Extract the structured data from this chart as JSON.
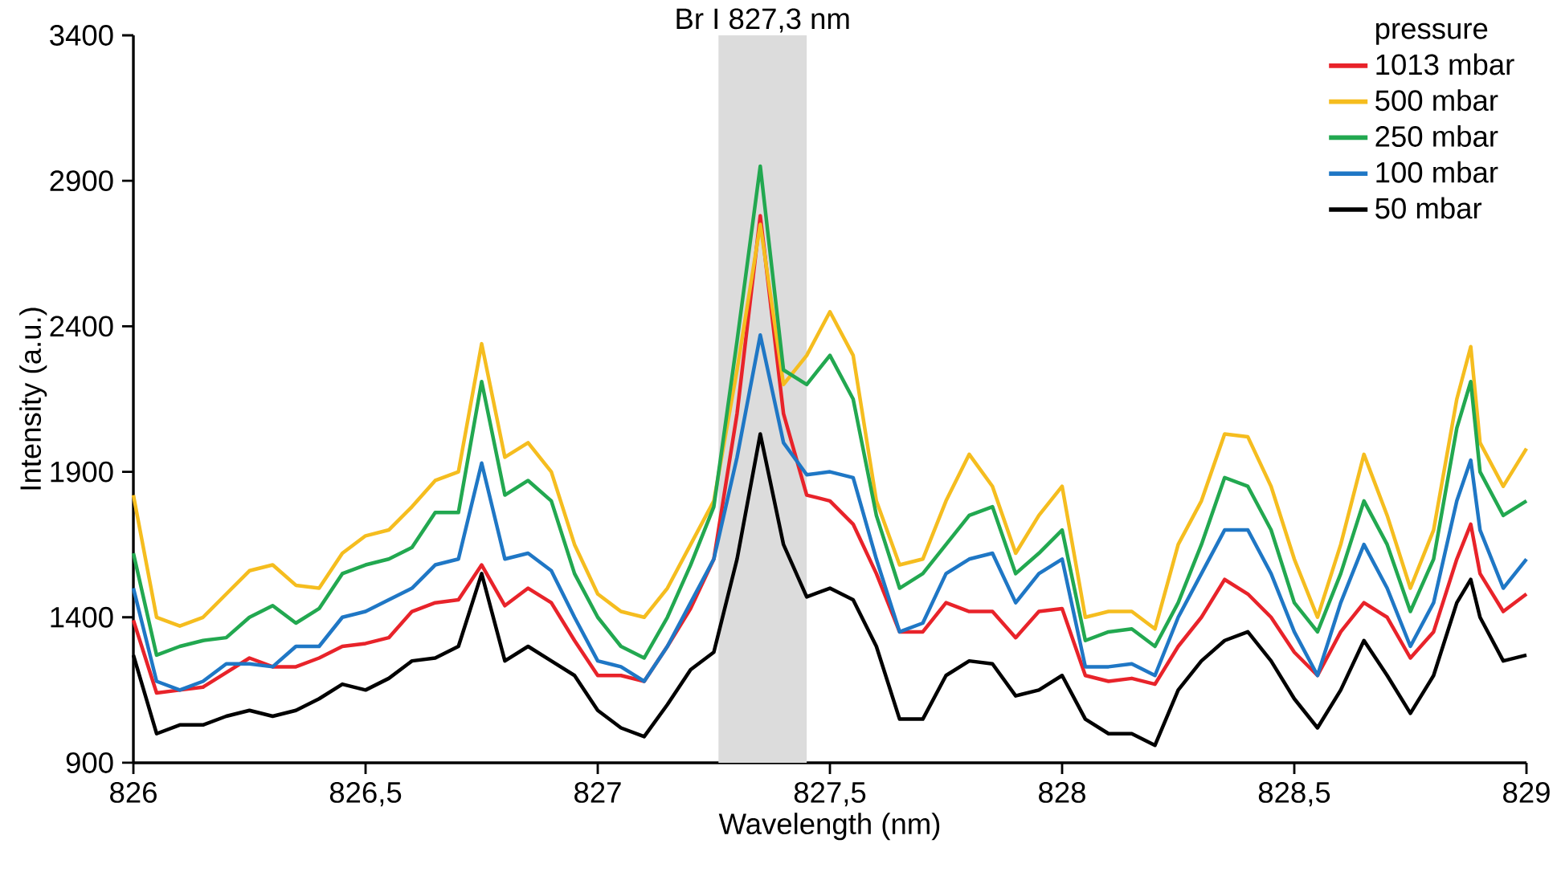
{
  "chart_data": {
    "type": "line",
    "xlabel": "Wavelength (nm)",
    "ylabel": "Intensity (a.u.)",
    "legend_title": "pressure",
    "legend": "top right",
    "line_style": "solid",
    "xlim": [
      826,
      829
    ],
    "ylim": [
      900,
      3400
    ],
    "xticks": [
      826,
      {
        "value": 826.5,
        "label": "826,5"
      },
      827,
      {
        "value": 827.5,
        "label": "827,5"
      },
      828,
      {
        "value": 828.5,
        "label": "828,5"
      },
      829
    ],
    "yticks": [
      900,
      1400,
      1900,
      2400,
      2900,
      3400
    ],
    "bands": [
      {
        "axis": "x",
        "from": 827.26,
        "to": 827.45,
        "label": "Br I 827,3 nm",
        "color": "#dcdcdc"
      }
    ],
    "x": [
      826,
      826.05,
      826.1,
      826.15,
      826.2,
      826.25,
      826.3,
      826.35,
      826.4,
      826.45,
      826.5,
      826.55,
      826.6,
      826.65,
      826.7,
      826.75,
      826.8,
      826.85,
      826.9,
      826.95,
      827,
      827.05,
      827.1,
      827.15,
      827.2,
      827.25,
      827.3,
      827.35,
      827.4,
      827.45,
      827.5,
      827.55,
      827.6,
      827.65,
      827.7,
      827.75,
      827.8,
      827.85,
      827.9,
      827.95,
      828,
      828.05,
      828.1,
      828.15,
      828.2,
      828.25,
      828.3,
      828.35,
      828.4,
      828.45,
      828.5,
      828.55,
      828.6,
      828.65,
      828.7,
      828.75,
      828.8,
      828.85,
      828.88,
      828.9,
      828.95,
      829
    ],
    "series": [
      {
        "name": "1013 mbar",
        "color": "#e8232a",
        "values": [
          1390,
          1140,
          1150,
          1160,
          1210,
          1260,
          1230,
          1230,
          1260,
          1300,
          1310,
          1330,
          1420,
          1450,
          1460,
          1580,
          1440,
          1500,
          1450,
          1320,
          1200,
          1200,
          1180,
          1300,
          1430,
          1600,
          2100,
          2780,
          2100,
          1820,
          1800,
          1720,
          1550,
          1350,
          1350,
          1450,
          1420,
          1420,
          1330,
          1420,
          1430,
          1200,
          1180,
          1190,
          1170,
          1300,
          1400,
          1530,
          1480,
          1400,
          1280,
          1200,
          1350,
          1450,
          1400,
          1260,
          1350,
          1600,
          1720,
          1550,
          1420,
          1480
        ]
      },
      {
        "name": "500 mbar",
        "color": "#f5bd1f",
        "values": [
          1820,
          1400,
          1370,
          1400,
          1480,
          1560,
          1580,
          1510,
          1500,
          1620,
          1680,
          1700,
          1780,
          1870,
          1900,
          2340,
          1950,
          2000,
          1900,
          1650,
          1480,
          1420,
          1400,
          1500,
          1650,
          1800,
          2250,
          2750,
          2200,
          2300,
          2450,
          2300,
          1800,
          1580,
          1600,
          1800,
          1960,
          1850,
          1620,
          1750,
          1850,
          1400,
          1420,
          1420,
          1360,
          1650,
          1800,
          2030,
          2020,
          1850,
          1600,
          1400,
          1650,
          1960,
          1750,
          1500,
          1700,
          2150,
          2330,
          2000,
          1850,
          1980
        ]
      },
      {
        "name": "250 mbar",
        "color": "#22a850",
        "values": [
          1620,
          1270,
          1300,
          1320,
          1330,
          1400,
          1440,
          1380,
          1430,
          1550,
          1580,
          1600,
          1640,
          1760,
          1760,
          2210,
          1820,
          1870,
          1800,
          1550,
          1400,
          1300,
          1260,
          1400,
          1580,
          1780,
          2350,
          2950,
          2250,
          2200,
          2300,
          2150,
          1750,
          1500,
          1550,
          1650,
          1750,
          1780,
          1550,
          1620,
          1700,
          1320,
          1350,
          1360,
          1300,
          1450,
          1650,
          1880,
          1850,
          1700,
          1450,
          1350,
          1550,
          1800,
          1650,
          1420,
          1600,
          2050,
          2210,
          1900,
          1750,
          1800
        ]
      },
      {
        "name": "100 mbar",
        "color": "#1f77c5",
        "values": [
          1500,
          1180,
          1150,
          1180,
          1240,
          1240,
          1230,
          1300,
          1300,
          1400,
          1420,
          1460,
          1500,
          1580,
          1600,
          1930,
          1600,
          1620,
          1560,
          1400,
          1250,
          1230,
          1180,
          1300,
          1450,
          1600,
          1950,
          2370,
          2000,
          1890,
          1900,
          1880,
          1600,
          1350,
          1380,
          1550,
          1600,
          1620,
          1450,
          1550,
          1600,
          1230,
          1230,
          1240,
          1200,
          1400,
          1550,
          1700,
          1700,
          1550,
          1350,
          1200,
          1450,
          1650,
          1500,
          1300,
          1450,
          1800,
          1940,
          1700,
          1500,
          1600
        ]
      },
      {
        "name": "50 mbar",
        "color": "#000000",
        "values": [
          1270,
          1000,
          1030,
          1030,
          1060,
          1080,
          1060,
          1080,
          1120,
          1170,
          1150,
          1190,
          1250,
          1260,
          1300,
          1550,
          1250,
          1300,
          1250,
          1200,
          1080,
          1020,
          990,
          1100,
          1220,
          1280,
          1600,
          2030,
          1650,
          1470,
          1500,
          1460,
          1300,
          1050,
          1050,
          1200,
          1250,
          1240,
          1130,
          1150,
          1200,
          1050,
          1000,
          1000,
          960,
          1150,
          1250,
          1320,
          1350,
          1250,
          1120,
          1020,
          1150,
          1320,
          1200,
          1070,
          1200,
          1450,
          1530,
          1400,
          1250,
          1270
        ]
      }
    ]
  }
}
